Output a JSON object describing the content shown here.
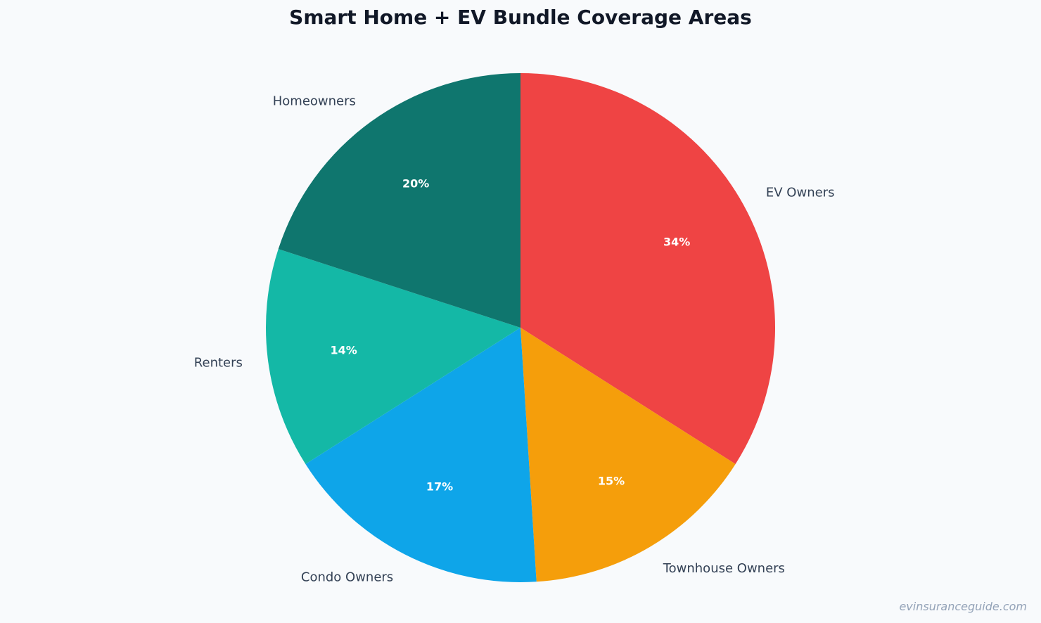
{
  "chart_data": {
    "type": "pie",
    "title": "Smart Home + EV Bundle Coverage Areas",
    "start": "12 o'clock",
    "direction": "clockwise",
    "slices": [
      {
        "label": "EV Owners",
        "value": 34,
        "display": "34%",
        "color": "#ef4444"
      },
      {
        "label": "Townhouse Owners",
        "value": 15,
        "display": "15%",
        "color": "#f59e0b"
      },
      {
        "label": "Condo Owners",
        "value": 17,
        "display": "17%",
        "color": "#0ea5e9"
      },
      {
        "label": "Renters",
        "value": 14,
        "display": "14%",
        "color": "#14b8a6"
      },
      {
        "label": "Homeowners",
        "value": 20,
        "display": "20%",
        "color": "#0f766e"
      }
    ]
  },
  "watermark": "evinsuranceguide.com",
  "colors": {
    "background": "#f8fafc",
    "title": "#111827",
    "category_label": "#334155",
    "percent_label": "#ffffff",
    "watermark": "#94a3b8"
  }
}
